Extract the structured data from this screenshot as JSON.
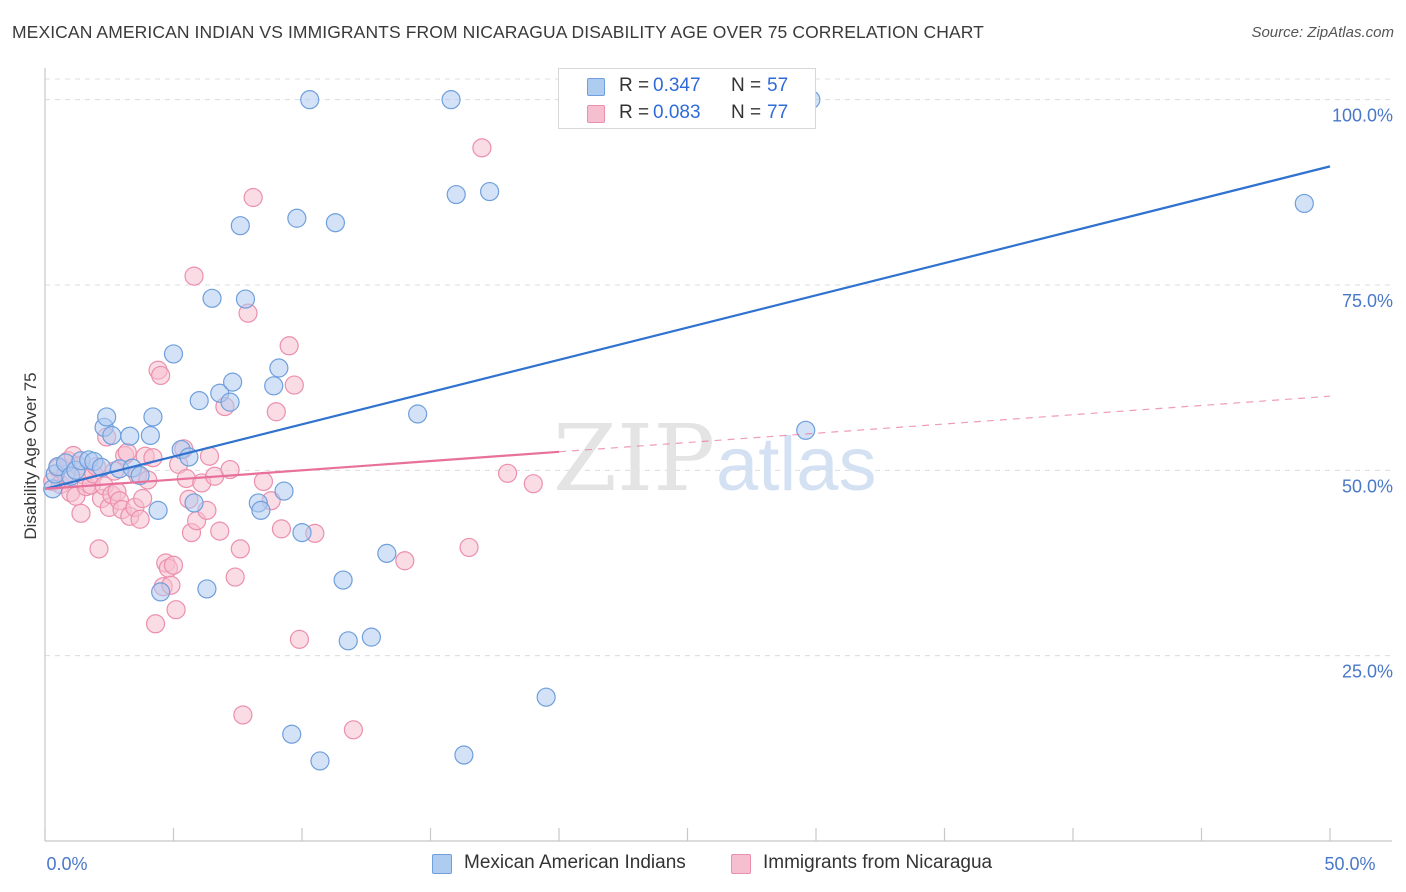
{
  "title": "MEXICAN AMERICAN INDIAN VS IMMIGRANTS FROM NICARAGUA DISABILITY AGE OVER 75 CORRELATION CHART",
  "source": "Source: ZipAtlas.com",
  "watermark": {
    "zip": "ZIP",
    "atlas": "atlas"
  },
  "colors": {
    "blue_fill": "#aecbf0",
    "blue_stroke": "#6f9fdc",
    "blue_line": "#2f72cf",
    "pink_fill": "#f6bfd0",
    "pink_stroke": "#ec8fae",
    "pink_line": "#e8719c",
    "tick_color": "#4a78c8",
    "grid": "#dcdcdc"
  },
  "legend_top": [
    {
      "r_label": "R =",
      "r_value": "0.347",
      "n_label": "N =",
      "n_value": "57"
    },
    {
      "r_label": "R =",
      "r_value": "0.083",
      "n_label": "N =",
      "n_value": "77"
    }
  ],
  "legend_bottom": [
    {
      "label": "Mexican American Indians"
    },
    {
      "label": "Immigrants from Nicaragua"
    }
  ],
  "chart_data": {
    "type": "scatter",
    "title": "MEXICAN AMERICAN INDIAN VS IMMIGRANTS FROM NICARAGUA DISABILITY AGE OVER 75 CORRELATION CHART",
    "xlabel": "",
    "ylabel": "Disability Age Over 75",
    "xlim": [
      0,
      50
    ],
    "ylim": [
      0,
      104
    ],
    "x_ticks": [
      {
        "value": 0,
        "label": "0.0%"
      },
      {
        "value": 50,
        "label": "50.0%"
      }
    ],
    "y_ticks": [
      {
        "value": 25,
        "label": "25.0%"
      },
      {
        "value": 50,
        "label": "50.0%"
      },
      {
        "value": 75,
        "label": "75.0%"
      },
      {
        "value": 100,
        "label": "100.0%"
      }
    ],
    "series": [
      {
        "name": "Mexican American Indians",
        "r": 0.347,
        "n": 57,
        "trend": {
          "x0": 0,
          "y0": 47.5,
          "x1": 50,
          "y1": 91.0,
          "dashed_from": null
        },
        "points": [
          [
            0.3,
            47.5
          ],
          [
            0.4,
            49.5
          ],
          [
            0.5,
            50.5
          ],
          [
            0.8,
            51.0
          ],
          [
            1.0,
            49.2
          ],
          [
            1.2,
            50.0
          ],
          [
            1.4,
            51.3
          ],
          [
            1.7,
            51.4
          ],
          [
            1.9,
            51.2
          ],
          [
            2.2,
            50.4
          ],
          [
            2.3,
            55.8
          ],
          [
            2.4,
            57.2
          ],
          [
            2.6,
            54.7
          ],
          [
            2.9,
            50.2
          ],
          [
            3.3,
            54.6
          ],
          [
            3.4,
            50.3
          ],
          [
            3.7,
            49.3
          ],
          [
            4.1,
            54.7
          ],
          [
            4.2,
            57.2
          ],
          [
            4.5,
            33.6
          ],
          [
            4.4,
            44.6
          ],
          [
            5.0,
            65.7
          ],
          [
            5.3,
            52.8
          ],
          [
            5.6,
            51.8
          ],
          [
            5.8,
            45.6
          ],
          [
            6.0,
            59.4
          ],
          [
            6.3,
            34.0
          ],
          [
            6.5,
            73.2
          ],
          [
            6.8,
            60.4
          ],
          [
            7.2,
            59.2
          ],
          [
            7.3,
            61.9
          ],
          [
            7.6,
            83.0
          ],
          [
            7.8,
            73.1
          ],
          [
            8.3,
            45.6
          ],
          [
            8.4,
            44.6
          ],
          [
            8.9,
            61.4
          ],
          [
            9.1,
            63.8
          ],
          [
            9.3,
            47.2
          ],
          [
            9.6,
            14.4
          ],
          [
            9.8,
            84.0
          ],
          [
            10.0,
            41.6
          ],
          [
            10.3,
            100.0
          ],
          [
            10.7,
            10.8
          ],
          [
            11.3,
            83.4
          ],
          [
            11.6,
            35.2
          ],
          [
            11.8,
            27.0
          ],
          [
            12.7,
            27.5
          ],
          [
            13.3,
            38.8
          ],
          [
            14.5,
            57.6
          ],
          [
            15.8,
            100.0
          ],
          [
            16.0,
            87.2
          ],
          [
            16.3,
            11.6
          ],
          [
            17.3,
            87.6
          ],
          [
            19.5,
            19.4
          ],
          [
            29.6,
            55.4
          ],
          [
            29.8,
            100.0
          ],
          [
            49.0,
            86.0
          ]
        ]
      },
      {
        "name": "Immigrants from Nicaragua",
        "r": 0.083,
        "n": 77,
        "trend": {
          "x0": 0,
          "y0": 47.5,
          "x1": 50,
          "y1": 60.0,
          "dashed_from": 20
        },
        "points": [
          [
            0.3,
            48.5
          ],
          [
            0.5,
            50.3
          ],
          [
            0.6,
            48.1
          ],
          [
            0.8,
            49.5
          ],
          [
            0.9,
            51.3
          ],
          [
            1.0,
            47.0
          ],
          [
            1.1,
            52.0
          ],
          [
            1.2,
            46.5
          ],
          [
            1.3,
            50.6
          ],
          [
            1.4,
            44.2
          ],
          [
            1.5,
            49.4
          ],
          [
            1.6,
            47.8
          ],
          [
            1.8,
            48.0
          ],
          [
            1.9,
            49.5
          ],
          [
            2.0,
            50.5
          ],
          [
            2.1,
            39.4
          ],
          [
            2.2,
            46.2
          ],
          [
            2.3,
            47.9
          ],
          [
            2.4,
            54.5
          ],
          [
            2.5,
            45.0
          ],
          [
            2.6,
            46.7
          ],
          [
            2.7,
            49.9
          ],
          [
            2.8,
            47.1
          ],
          [
            2.9,
            45.9
          ],
          [
            3.0,
            44.7
          ],
          [
            3.1,
            52.0
          ],
          [
            3.2,
            52.4
          ],
          [
            3.3,
            43.8
          ],
          [
            3.5,
            45.0
          ],
          [
            3.7,
            43.4
          ],
          [
            3.6,
            49.4
          ],
          [
            3.8,
            46.2
          ],
          [
            3.9,
            51.9
          ],
          [
            4.0,
            48.7
          ],
          [
            4.2,
            51.7
          ],
          [
            4.3,
            29.3
          ],
          [
            4.4,
            63.5
          ],
          [
            4.5,
            62.8
          ],
          [
            4.6,
            34.3
          ],
          [
            4.7,
            37.5
          ],
          [
            4.8,
            36.8
          ],
          [
            4.9,
            34.5
          ],
          [
            5.0,
            37.2
          ],
          [
            5.1,
            31.2
          ],
          [
            5.2,
            50.8
          ],
          [
            5.4,
            52.9
          ],
          [
            5.5,
            48.9
          ],
          [
            5.6,
            46.1
          ],
          [
            5.7,
            41.6
          ],
          [
            5.8,
            76.2
          ],
          [
            5.9,
            43.2
          ],
          [
            6.1,
            48.3
          ],
          [
            6.3,
            44.6
          ],
          [
            6.4,
            51.9
          ],
          [
            6.6,
            49.2
          ],
          [
            6.8,
            41.8
          ],
          [
            7.0,
            58.6
          ],
          [
            7.2,
            50.1
          ],
          [
            7.4,
            35.6
          ],
          [
            7.6,
            39.4
          ],
          [
            7.7,
            17.0
          ],
          [
            7.9,
            71.2
          ],
          [
            8.1,
            86.8
          ],
          [
            8.5,
            48.5
          ],
          [
            8.8,
            45.9
          ],
          [
            9.0,
            57.9
          ],
          [
            9.2,
            42.1
          ],
          [
            9.5,
            66.8
          ],
          [
            9.7,
            61.5
          ],
          [
            9.9,
            27.2
          ],
          [
            10.5,
            41.5
          ],
          [
            12.0,
            15.0
          ],
          [
            14.0,
            37.8
          ],
          [
            16.5,
            39.6
          ],
          [
            17.0,
            93.5
          ],
          [
            18.0,
            49.6
          ],
          [
            19.0,
            48.2
          ]
        ]
      }
    ]
  }
}
